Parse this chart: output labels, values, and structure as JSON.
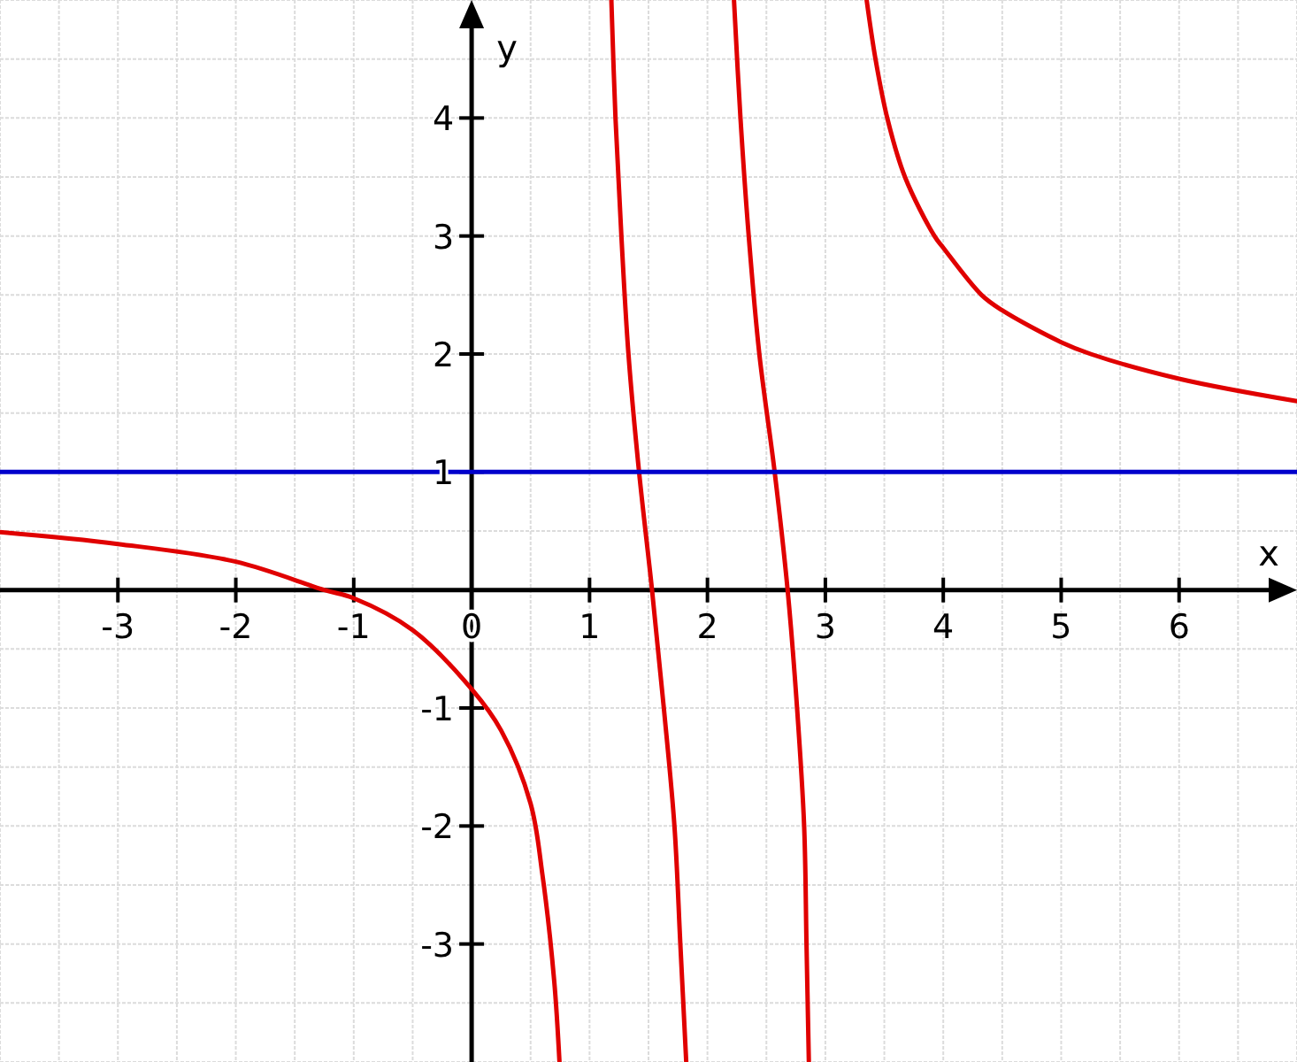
{
  "chart_data": {
    "type": "line",
    "xlabel": "x",
    "ylabel": "y",
    "xlim": [
      -4,
      7
    ],
    "ylim": [
      -4,
      5
    ],
    "xticks": [
      -3,
      -2,
      -1,
      0,
      1,
      2,
      3,
      4,
      5,
      6
    ],
    "yticks": [
      -3,
      -2,
      -1,
      1,
      2,
      3,
      4
    ],
    "grid": true,
    "marker": "none",
    "line_style": "solid",
    "series": [
      {
        "color": "#e00000",
        "x": [
          -4,
          -3,
          -2,
          -1.25,
          -1,
          -0.5,
          0,
          0.25,
          0.5,
          0.6,
          0.7,
          0.745
        ],
        "values": [
          0.49,
          0.39,
          0.24,
          0,
          -0.07,
          -0.34,
          -0.84,
          -1.19,
          -1.81,
          -2.41,
          -3.31,
          -4
        ]
      },
      {
        "color": "#e00000",
        "x": [
          1.185,
          1.22,
          1.27,
          1.33,
          1.42,
          1.53,
          1.63,
          1.72,
          1.77,
          1.82
        ],
        "values": [
          5,
          4,
          3,
          2,
          1,
          0,
          -1,
          -2,
          -3,
          -4
        ]
      },
      {
        "color": "#e00000",
        "x": [
          2.225,
          2.28,
          2.35,
          2.44,
          2.57,
          2.68,
          2.76,
          2.82,
          2.84,
          2.86
        ],
        "values": [
          5,
          4,
          3,
          2,
          1,
          0,
          -1,
          -2,
          -3,
          -4
        ]
      },
      {
        "color": "#e00000",
        "x": [
          3.35,
          3.425,
          3.525,
          3.675,
          3.925,
          4,
          4.325,
          4.5,
          5,
          5.25,
          6,
          7
        ],
        "values": [
          5,
          4.5,
          4,
          3.5,
          3,
          2.9,
          2.5,
          2.37,
          2.1,
          2.0,
          1.79,
          1.6
        ]
      },
      {
        "color": "#0000cc",
        "x": [
          -4,
          7
        ],
        "values": [
          1,
          1
        ]
      }
    ]
  }
}
